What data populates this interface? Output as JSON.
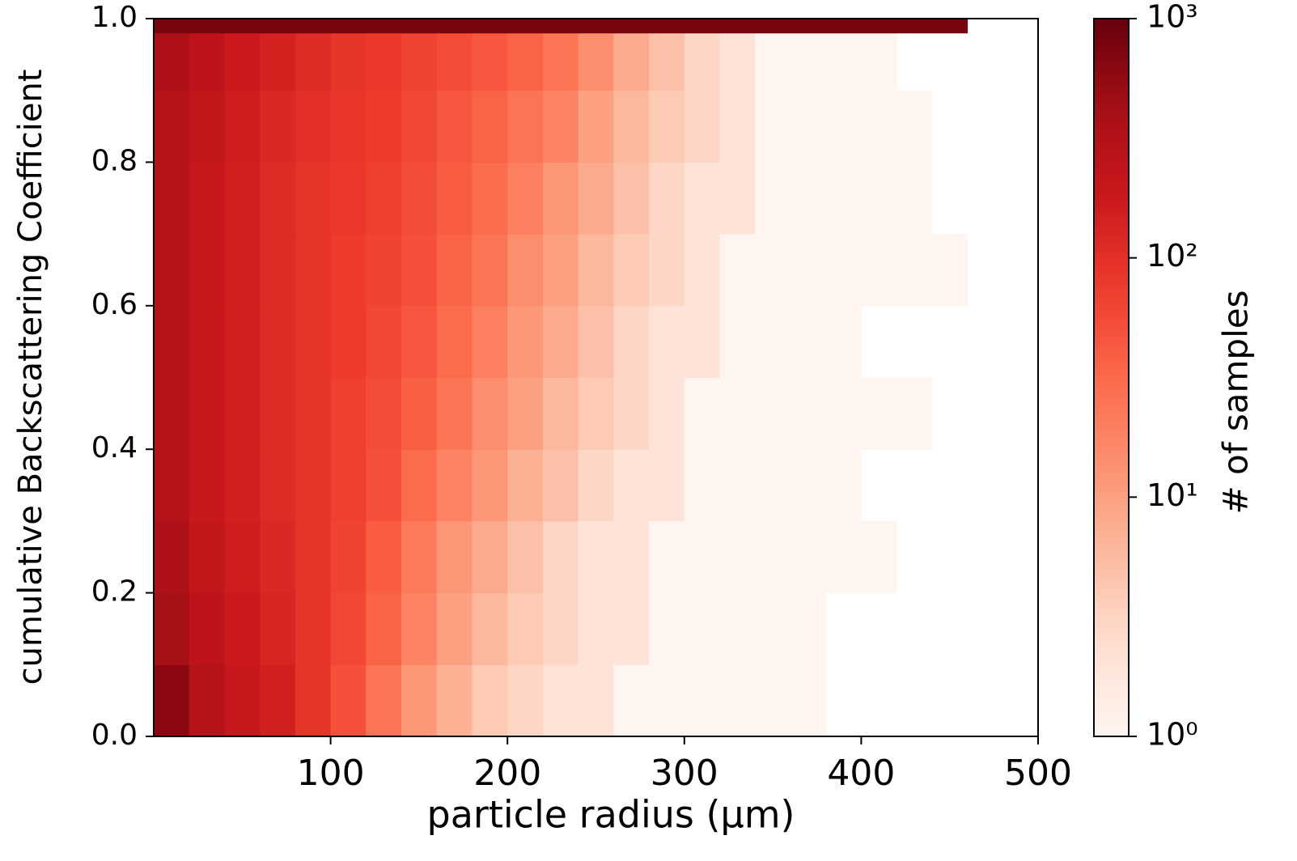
{
  "chart_data": {
    "type": "heatmap",
    "xlabel": "particle radius (μm)",
    "ylabel": "cumulative Backscattering Coefficient",
    "colorbar_label": "# of samples",
    "colormap": "Reds",
    "color_scale": "log",
    "clim": [
      1,
      1000
    ],
    "cticks": [
      {
        "value": 1,
        "label": "10⁰"
      },
      {
        "value": 10,
        "label": "10¹"
      },
      {
        "value": 100,
        "label": "10²"
      },
      {
        "value": 1000,
        "label": "10³"
      }
    ],
    "xlim": [
      0,
      500
    ],
    "xticks": [
      100,
      200,
      300,
      400,
      500
    ],
    "ylim": [
      0,
      1
    ],
    "yticks": [
      {
        "value": 0,
        "label": "0.0"
      },
      0.2,
      0.4,
      0.6,
      0.8,
      {
        "value": 1,
        "label": "1.0"
      }
    ],
    "xbins": [
      0,
      20,
      40,
      60,
      80,
      100,
      120,
      140,
      160,
      180,
      200,
      220,
      240,
      260,
      280,
      300,
      320,
      340,
      360,
      380,
      400,
      420,
      440,
      460,
      480
    ],
    "ybins": [
      0,
      0.1,
      0.2,
      0.3,
      0.4,
      0.5,
      0.6,
      0.7,
      0.8,
      0.9,
      0.98,
      1.0
    ],
    "values": [
      [
        600,
        300,
        200,
        150,
        90,
        50,
        25,
        12,
        7,
        4,
        3,
        2,
        2,
        1,
        1,
        1,
        1,
        1,
        1,
        0,
        0,
        0,
        0,
        0
      ],
      [
        400,
        250,
        180,
        130,
        90,
        60,
        35,
        18,
        10,
        6,
        4,
        3,
        2,
        2,
        1,
        1,
        1,
        1,
        1,
        0,
        0,
        0,
        0,
        0
      ],
      [
        350,
        220,
        160,
        120,
        90,
        65,
        40,
        22,
        12,
        8,
        5,
        3,
        2,
        2,
        1,
        1,
        1,
        1,
        1,
        1,
        1,
        0,
        0,
        0
      ],
      [
        300,
        200,
        150,
        110,
        90,
        70,
        50,
        30,
        18,
        12,
        7,
        5,
        3,
        2,
        2,
        1,
        1,
        1,
        1,
        1,
        0,
        0,
        0,
        0
      ],
      [
        300,
        200,
        150,
        110,
        90,
        70,
        55,
        38,
        25,
        15,
        10,
        6,
        4,
        3,
        2,
        1,
        1,
        1,
        1,
        1,
        1,
        1,
        0,
        0
      ],
      [
        300,
        200,
        150,
        110,
        90,
        75,
        60,
        45,
        30,
        20,
        12,
        8,
        5,
        3,
        2,
        2,
        1,
        1,
        1,
        1,
        0,
        0,
        0,
        0
      ],
      [
        300,
        200,
        150,
        110,
        90,
        75,
        65,
        50,
        35,
        25,
        15,
        10,
        6,
        4,
        3,
        2,
        1,
        1,
        1,
        1,
        1,
        1,
        1,
        0
      ],
      [
        300,
        200,
        150,
        110,
        90,
        80,
        70,
        55,
        40,
        30,
        20,
        12,
        8,
        5,
        3,
        2,
        2,
        1,
        1,
        1,
        1,
        1,
        0,
        0
      ],
      [
        300,
        220,
        160,
        120,
        100,
        85,
        75,
        60,
        45,
        35,
        25,
        18,
        10,
        6,
        4,
        3,
        2,
        1,
        1,
        1,
        1,
        1,
        0,
        0
      ],
      [
        350,
        250,
        180,
        140,
        110,
        90,
        80,
        65,
        55,
        45,
        35,
        25,
        15,
        8,
        5,
        3,
        2,
        1,
        1,
        1,
        1,
        0,
        0,
        0
      ],
      [
        800,
        800,
        800,
        800,
        800,
        800,
        800,
        800,
        800,
        800,
        800,
        800,
        800,
        800,
        800,
        800,
        800,
        800,
        800,
        800,
        800,
        800,
        800,
        0
      ]
    ]
  }
}
